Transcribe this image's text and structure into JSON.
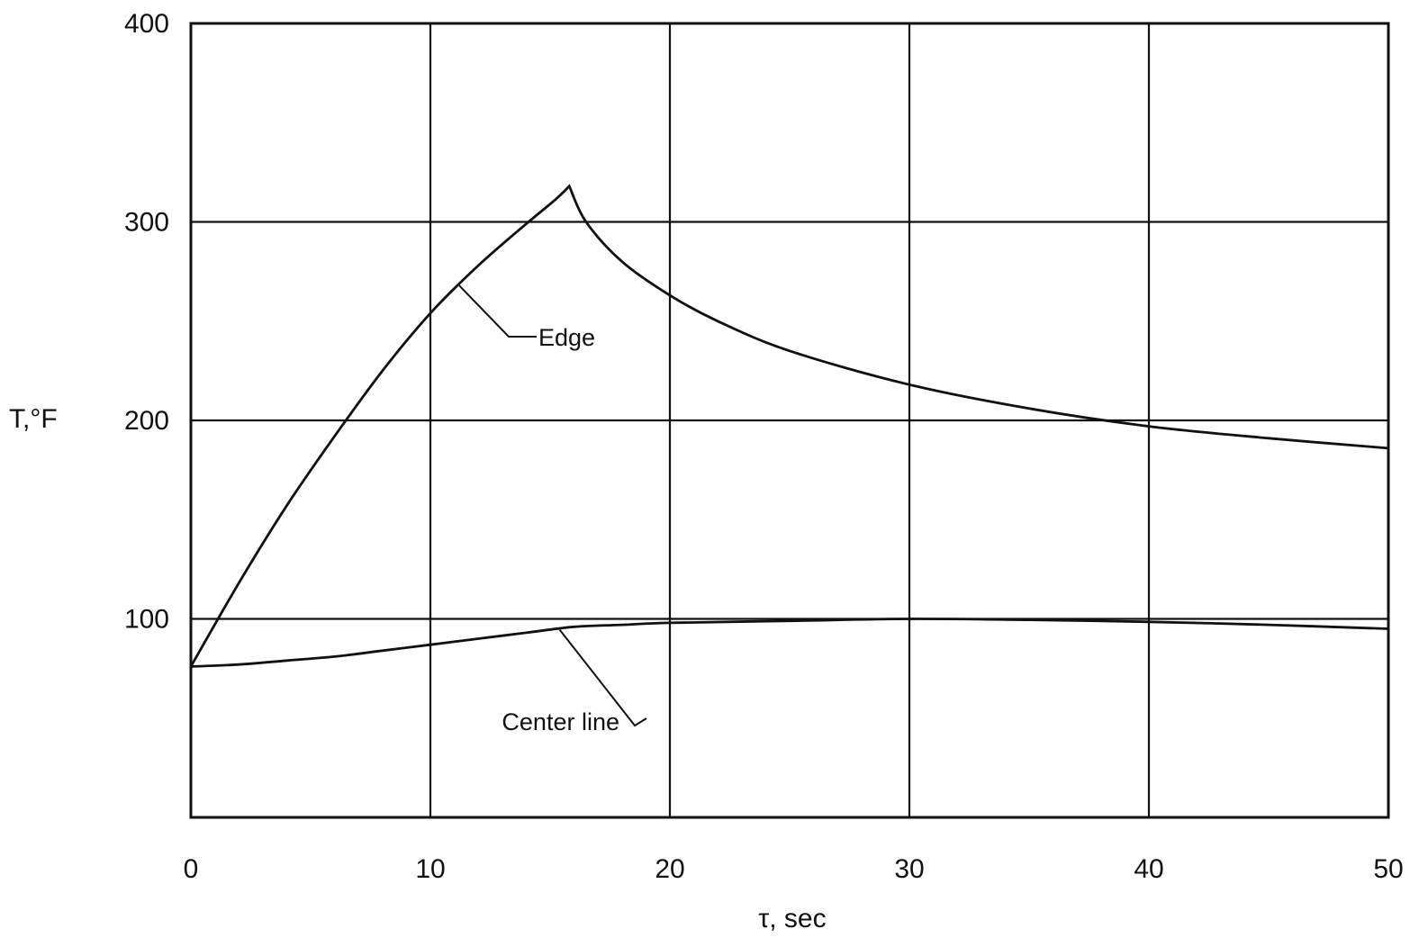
{
  "chart_data": {
    "type": "line",
    "title": "",
    "xlabel": "τ, sec",
    "ylabel": "T,°F",
    "xlim": [
      0,
      50
    ],
    "ylim": [
      0,
      400
    ],
    "xticks": [
      0,
      10,
      20,
      30,
      40,
      50
    ],
    "yticks": [
      100,
      200,
      300,
      400
    ],
    "grid": true,
    "series": [
      {
        "name": "Edge",
        "x": [
          0,
          2,
          4,
          6,
          8,
          10,
          12,
          14,
          15.2,
          15.8,
          16.5,
          18,
          20,
          22,
          25,
          30,
          35,
          40,
          45,
          50
        ],
        "y": [
          76,
          118,
          157,
          192,
          225,
          254,
          278,
          299,
          311,
          318,
          300,
          280,
          263,
          250,
          235,
          218,
          206,
          197,
          191,
          186
        ]
      },
      {
        "name": "Center line",
        "x": [
          0,
          2,
          4,
          6,
          8,
          10,
          12,
          14,
          16,
          18,
          20,
          25,
          30,
          35,
          40,
          45,
          50
        ],
        "y": [
          76,
          77,
          79,
          81,
          84,
          87,
          90,
          93,
          96,
          97,
          98,
          99,
          100,
          99.5,
          98.5,
          97,
          95
        ]
      }
    ],
    "annotations": [
      {
        "text": "Edge",
        "series": "Edge"
      },
      {
        "text": "Center line",
        "series": "Center line"
      }
    ]
  }
}
